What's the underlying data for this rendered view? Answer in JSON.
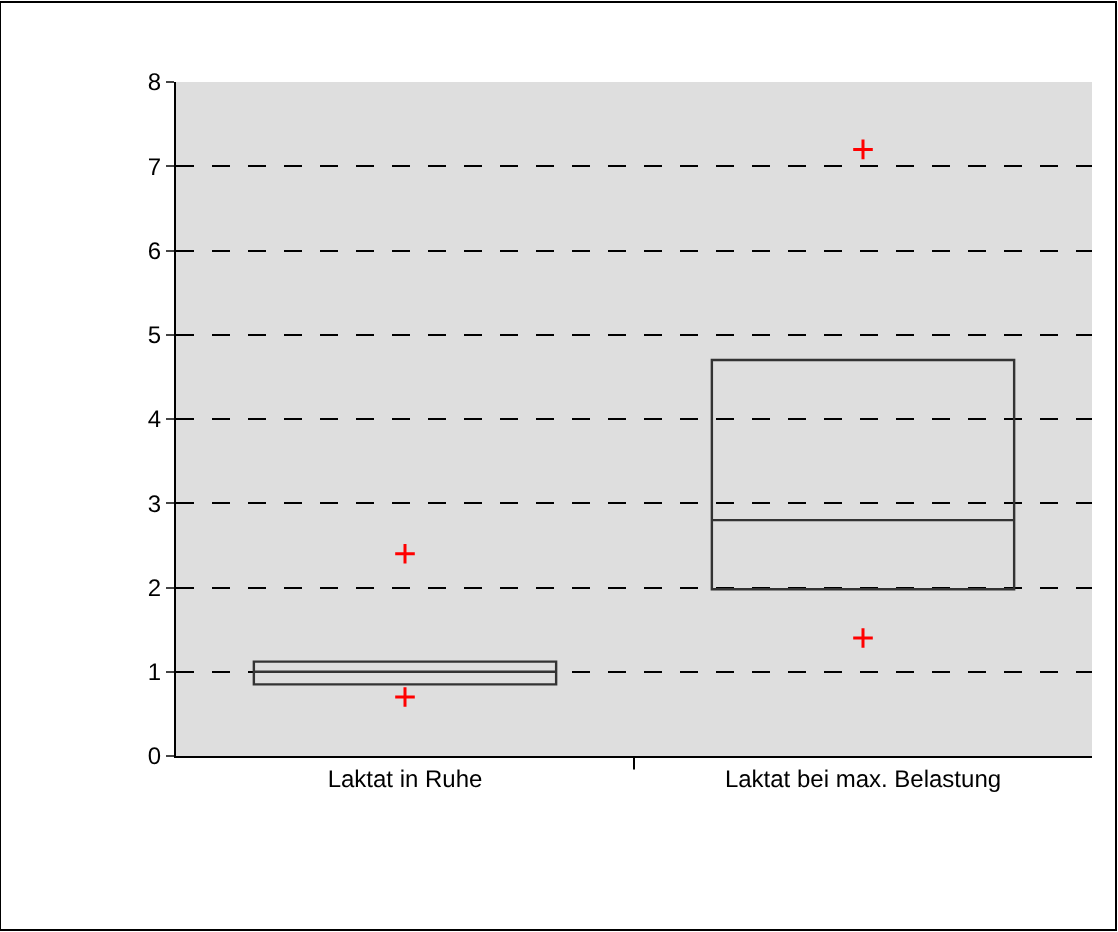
{
  "chart_data": {
    "type": "box",
    "categories": [
      "Laktat in Ruhe",
      "Laktat bei max. Belastung"
    ],
    "boxes": [
      {
        "q1": 0.85,
        "median": 1.0,
        "q3": 1.12,
        "outliers": [
          0.7,
          2.4
        ]
      },
      {
        "q1": 1.98,
        "median": 2.8,
        "q3": 4.7,
        "outliers": [
          1.4,
          7.2
        ]
      }
    ],
    "ylim": [
      0,
      8
    ],
    "yticks": [
      0,
      1,
      2,
      3,
      4,
      5,
      6,
      7,
      8
    ],
    "grid": "y"
  }
}
